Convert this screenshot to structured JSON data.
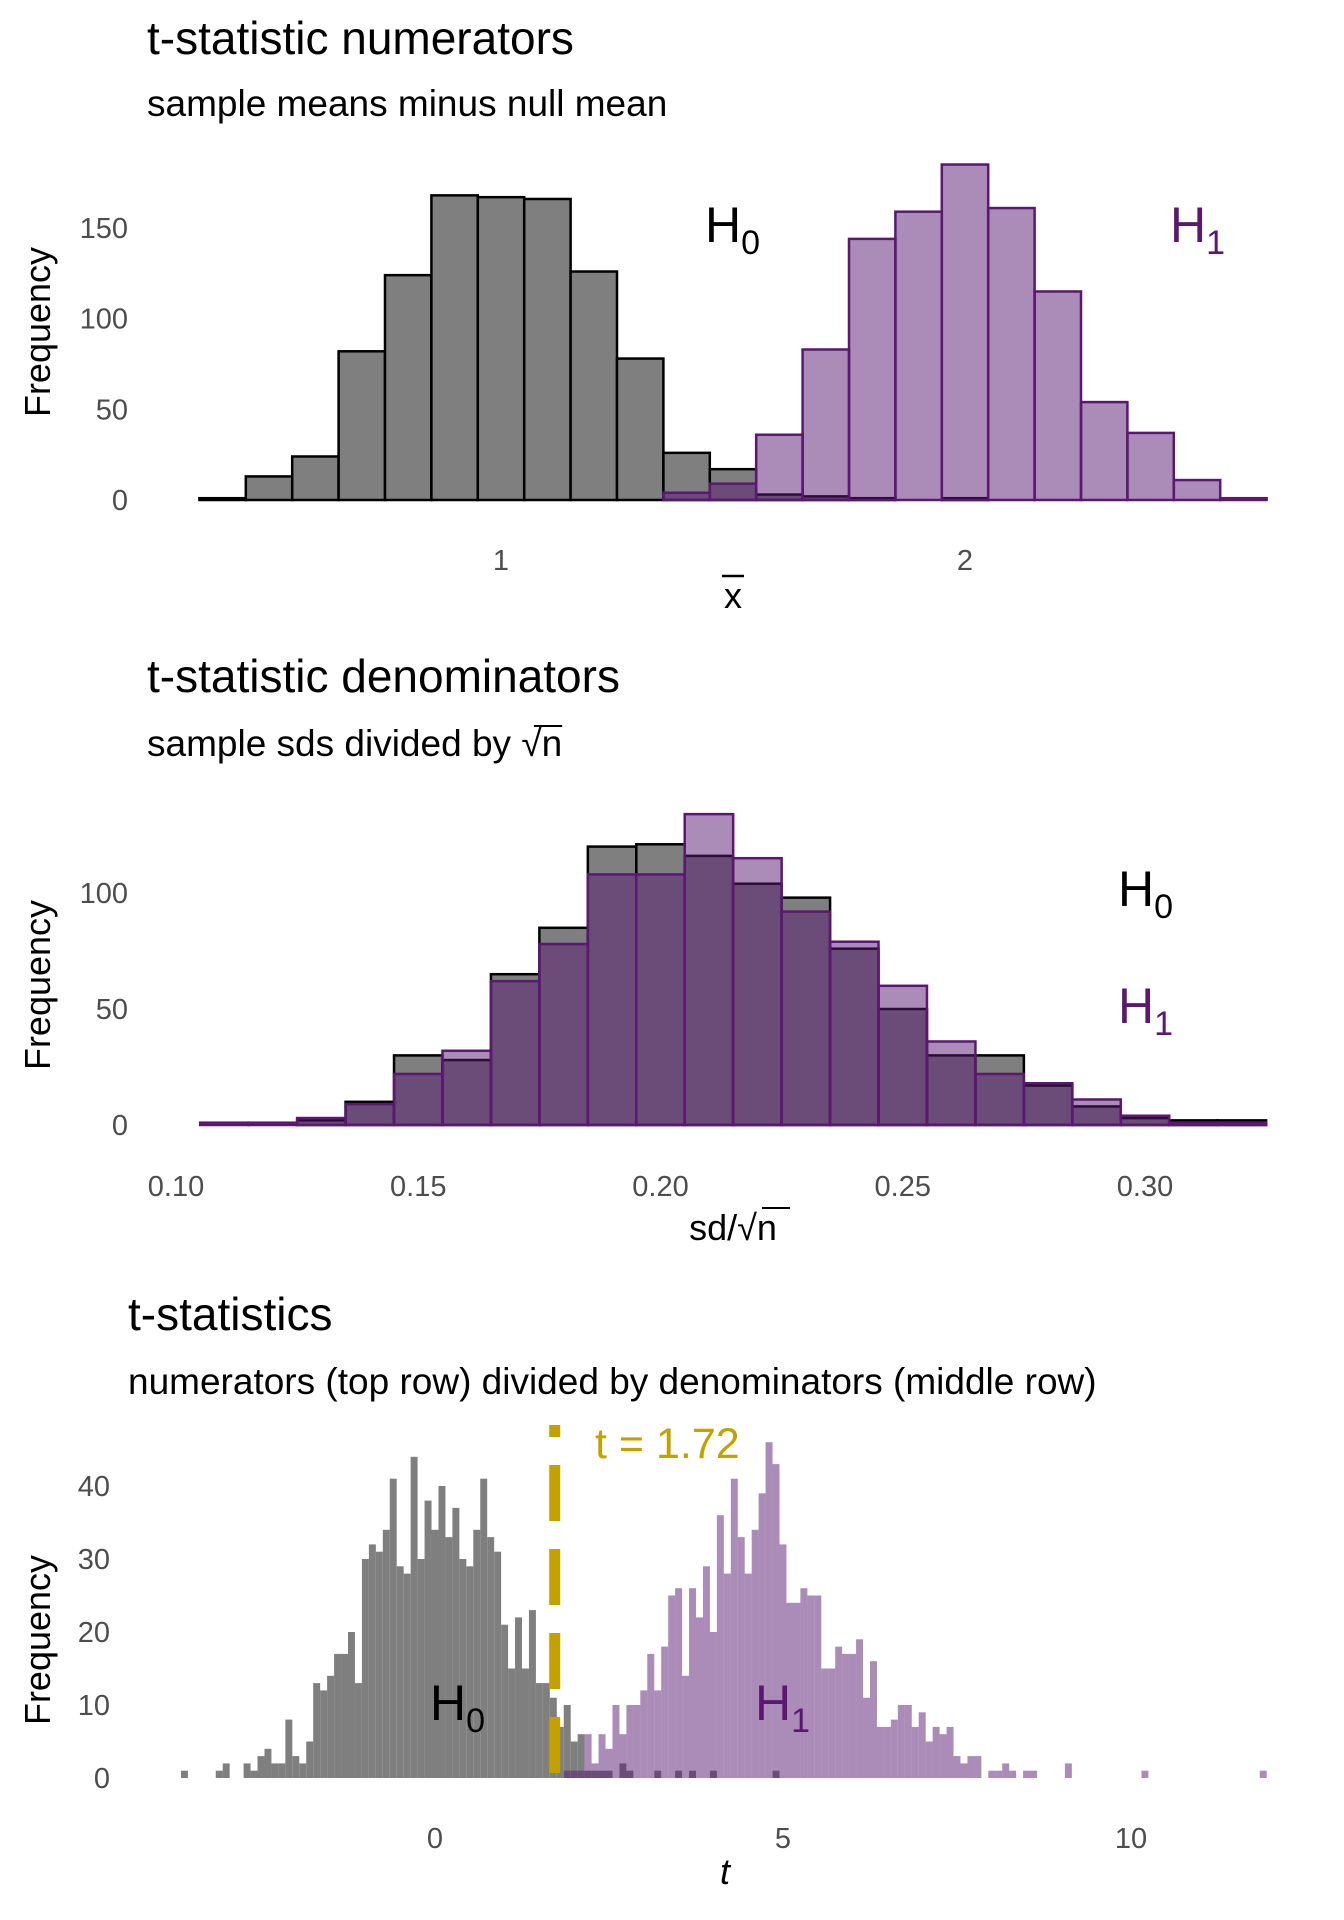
{
  "colors": {
    "h0_fill": "#7f7f7f",
    "h0_stroke": "#000000",
    "h1_fill": "#581872",
    "h1_stroke": "#5a1870",
    "h1_label": "#5a1870",
    "critical_line": "#c3a100",
    "tick_text": "#4d4d4d"
  },
  "chart_data": [
    {
      "type": "bar",
      "title": "t-statistic numerators",
      "subtitle": "sample means minus null mean",
      "xlabel": "x",
      "xlabel_overline": true,
      "ylabel": "Frequency",
      "binwidth": 0.1,
      "x": [
        0.4,
        0.5,
        0.6,
        0.7,
        0.8,
        0.9,
        1.0,
        1.1,
        1.2,
        1.3,
        1.4,
        1.5,
        1.6,
        1.7,
        1.8,
        1.9,
        2.0,
        2.1,
        2.2,
        2.3,
        2.4,
        2.5,
        2.6
      ],
      "series": [
        {
          "name": "H",
          "sub": "0",
          "values": [
            1,
            13,
            24,
            82,
            124,
            168,
            167,
            166,
            126,
            78,
            26,
            17,
            3,
            2,
            1,
            0,
            1,
            0,
            0,
            0,
            0,
            0,
            0
          ]
        },
        {
          "name": "H",
          "sub": "1",
          "values": [
            0,
            0,
            0,
            0,
            0,
            0,
            0,
            0,
            0,
            0,
            4,
            9,
            36,
            83,
            144,
            159,
            185,
            161,
            115,
            54,
            37,
            11,
            1
          ]
        }
      ],
      "xticks": [
        "1",
        "2"
      ],
      "xtick_values": [
        1,
        2
      ],
      "yticks": [
        "0",
        "50",
        "100",
        "150"
      ],
      "ytick_values": [
        0,
        50,
        100,
        150
      ],
      "xlim": [
        0.35,
        2.65
      ],
      "grid": false
    },
    {
      "type": "bar",
      "title": "t-statistic denominators",
      "subtitle_prefix": "sample sds divided by ",
      "sqrt_symbol": "√",
      "sqrt_arg": "n",
      "xlabel_prefix": "sd/",
      "xlabel_sqrt": "√",
      "xlabel_arg": "n",
      "ylabel": "Frequency",
      "binwidth": 0.01,
      "x": [
        0.11,
        0.12,
        0.13,
        0.14,
        0.15,
        0.16,
        0.17,
        0.18,
        0.19,
        0.2,
        0.21,
        0.22,
        0.23,
        0.24,
        0.25,
        0.26,
        0.27,
        0.28,
        0.29,
        0.3,
        0.31,
        0.32
      ],
      "series": [
        {
          "name": "H",
          "sub": "0",
          "values": [
            0,
            0,
            2,
            10,
            30,
            28,
            65,
            85,
            120,
            121,
            116,
            104,
            98,
            76,
            50,
            30,
            30,
            17,
            8,
            3,
            2,
            2
          ]
        },
        {
          "name": "H",
          "sub": "1",
          "values": [
            1,
            1,
            3,
            9,
            22,
            32,
            62,
            78,
            108,
            108,
            134,
            115,
            92,
            79,
            60,
            36,
            22,
            18,
            11,
            4,
            1,
            1
          ]
        }
      ],
      "xticks": [
        "0.10",
        "0.15",
        "0.20",
        "0.25",
        "0.30"
      ],
      "xtick_values": [
        0.1,
        0.15,
        0.2,
        0.25,
        0.3
      ],
      "yticks": [
        "0",
        "50",
        "100"
      ],
      "ytick_values": [
        0,
        50,
        100
      ],
      "xlim": [
        0.105,
        0.325
      ],
      "grid": false
    },
    {
      "type": "bar",
      "title": "t-statistics",
      "subtitle": "numerators (top row) divided by denominators (middle row)",
      "xlabel": "t",
      "ylabel": "Frequency",
      "binwidth": 0.1,
      "series": [
        {
          "name": "H",
          "sub": "0",
          "start": -3.6,
          "values": [
            1,
            0,
            0,
            0,
            0,
            1,
            2,
            0,
            0,
            2,
            1,
            3,
            4,
            2,
            2,
            8,
            3,
            2,
            5,
            13,
            12,
            14,
            17,
            17,
            20,
            13,
            30,
            32,
            31,
            34,
            41,
            29,
            28,
            44,
            30,
            38,
            34,
            40,
            33,
            37,
            30,
            29,
            34,
            41,
            33,
            31,
            21,
            15,
            22,
            15,
            23,
            13,
            13,
            11,
            7,
            10,
            5,
            6,
            1,
            1,
            1,
            1,
            0,
            2,
            1,
            0,
            0,
            0,
            1,
            0,
            0,
            1,
            0,
            1,
            0,
            0,
            1,
            0,
            0,
            0,
            0,
            0,
            0,
            0,
            0,
            1
          ]
        },
        {
          "name": "H",
          "sub": "1",
          "start": 1.9,
          "values": [
            1,
            1,
            1,
            6,
            2,
            6,
            4,
            10,
            6,
            10,
            10,
            12,
            17,
            12,
            18,
            25,
            26,
            14,
            26,
            22,
            29,
            20,
            36,
            28,
            41,
            33,
            28,
            34,
            39,
            46,
            43,
            32,
            24,
            24,
            26,
            25,
            25,
            15,
            15,
            18,
            17,
            17,
            19,
            11,
            16,
            7,
            7,
            8,
            10,
            10,
            7,
            9,
            5,
            7,
            6,
            7,
            3,
            2,
            3,
            3,
            0,
            1,
            1,
            2,
            1,
            0,
            1,
            1,
            0,
            0,
            0,
            0,
            2,
            0,
            0,
            0,
            0,
            0,
            0,
            0,
            0,
            0,
            0,
            1,
            0,
            0,
            0,
            0,
            0,
            0,
            0,
            0,
            0,
            0,
            0,
            0,
            0,
            0,
            0,
            0,
            1
          ]
        }
      ],
      "critical_value": 1.72,
      "critical_label": "t = 1.72",
      "xticks": [
        "0",
        "5",
        "10"
      ],
      "xtick_values": [
        0,
        5,
        10
      ],
      "yticks": [
        "0",
        "10",
        "20",
        "30",
        "40"
      ],
      "ytick_values": [
        0,
        10,
        20,
        30,
        40
      ],
      "xlim": [
        -3.65,
        12.0
      ],
      "grid": false
    }
  ]
}
